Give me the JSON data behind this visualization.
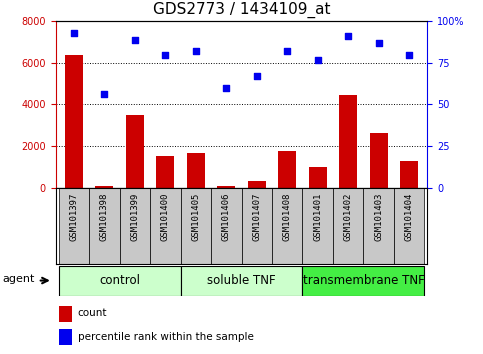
{
  "title": "GDS2773 / 1434109_at",
  "samples": [
    "GSM101397",
    "GSM101398",
    "GSM101399",
    "GSM101400",
    "GSM101405",
    "GSM101406",
    "GSM101407",
    "GSM101408",
    "GSM101401",
    "GSM101402",
    "GSM101403",
    "GSM101404"
  ],
  "counts": [
    6400,
    100,
    3500,
    1500,
    1650,
    100,
    300,
    1750,
    1000,
    4450,
    2650,
    1300
  ],
  "percentiles": [
    93,
    56,
    89,
    80,
    82,
    60,
    67,
    82,
    77,
    91,
    87,
    80
  ],
  "groups": [
    {
      "label": "control",
      "start": 0,
      "end": 4,
      "color": "#ccffcc"
    },
    {
      "label": "soluble TNF",
      "start": 4,
      "end": 8,
      "color": "#ccffcc"
    },
    {
      "label": "transmembrane TNF",
      "start": 8,
      "end": 12,
      "color": "#44ee44"
    }
  ],
  "bar_color": "#cc0000",
  "dot_color": "#0000ee",
  "left_ylim": [
    0,
    8000
  ],
  "right_ylim": [
    0,
    100
  ],
  "left_yticks": [
    0,
    2000,
    4000,
    6000,
    8000
  ],
  "right_yticks": [
    0,
    25,
    50,
    75,
    100
  ],
  "right_yticklabels": [
    "0",
    "25",
    "50",
    "75",
    "100%"
  ],
  "grid_values": [
    2000,
    4000,
    6000
  ],
  "agent_label": "agent",
  "legend_count": "count",
  "legend_percentile": "percentile rank within the sample",
  "title_fontsize": 11,
  "tick_fontsize": 7,
  "label_fontsize": 6.5,
  "group_label_fontsize": 8.5,
  "legend_fontsize": 7.5,
  "agent_fontsize": 8
}
